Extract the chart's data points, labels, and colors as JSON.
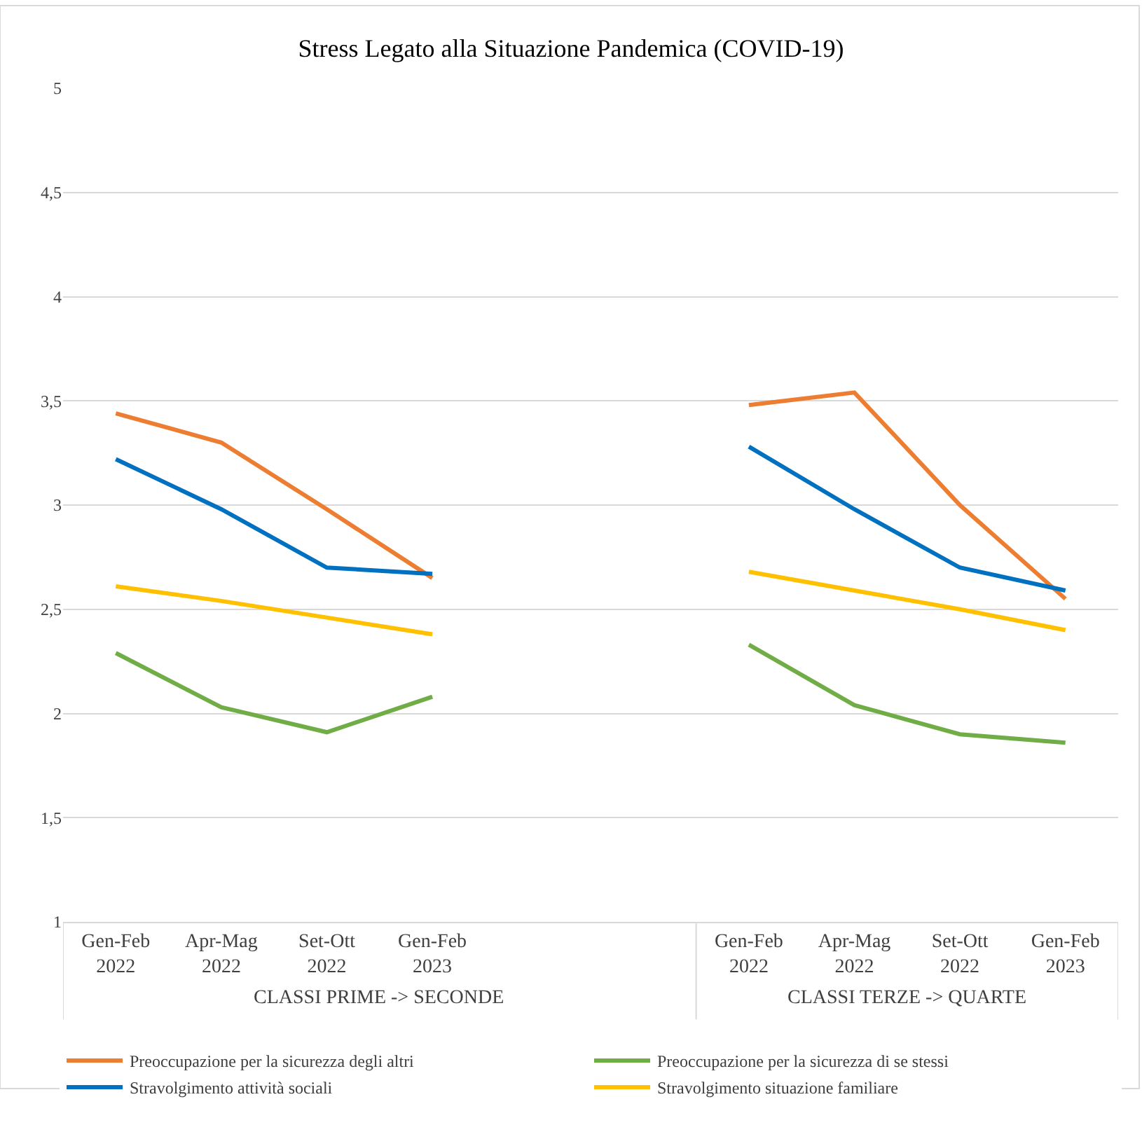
{
  "chart_data": {
    "type": "line",
    "title": "Stress Legato alla Situazione Pandemica (COVID-19)",
    "categories": [
      "Gen-Feb 2022",
      "Apr-Mag 2022",
      "Set-Ott 2022",
      "Gen-Feb 2023",
      null,
      null,
      "Gen-Feb 2022",
      "Apr-Mag 2022",
      "Set-Ott 2022",
      "Gen-Feb 2023"
    ],
    "series": [
      {
        "name": "Preoccupazione per la sicurezza degli altri",
        "color": "#ed7d31",
        "values": [
          3.44,
          3.3,
          2.98,
          2.65,
          null,
          null,
          3.48,
          3.54,
          3.0,
          2.55
        ]
      },
      {
        "name": "Preoccupazione per la sicurezza di se stessi",
        "color": "#70ad47",
        "values": [
          2.29,
          2.03,
          1.91,
          2.08,
          null,
          null,
          2.33,
          2.04,
          1.9,
          1.86
        ]
      },
      {
        "name": "Stravolgimento attività sociali",
        "color": "#0070c0",
        "values": [
          3.22,
          2.98,
          2.7,
          2.67,
          null,
          null,
          3.28,
          2.98,
          2.7,
          2.59
        ]
      },
      {
        "name": "Stravolgimento situazione familiare",
        "color": "#ffc000",
        "values": [
          2.61,
          2.54,
          2.46,
          2.38,
          null,
          null,
          2.68,
          2.59,
          2.5,
          2.4
        ]
      }
    ],
    "annotations": [
      "CLASSI PRIME -> SECONDE",
      "CLASSI TERZE -> QUARTE"
    ],
    "ylim": [
      1,
      5
    ],
    "yticks": [
      1,
      {
        "value": 1.5,
        "label": "1,5"
      },
      2,
      {
        "value": 2.5,
        "label": "2,5"
      },
      3,
      {
        "value": 3.5,
        "label": "3,5"
      },
      4,
      {
        "value": 4.5,
        "label": "4,5"
      },
      5
    ],
    "grid": "y",
    "legend": "bottom",
    "marker": "none",
    "line_style": "solid"
  }
}
